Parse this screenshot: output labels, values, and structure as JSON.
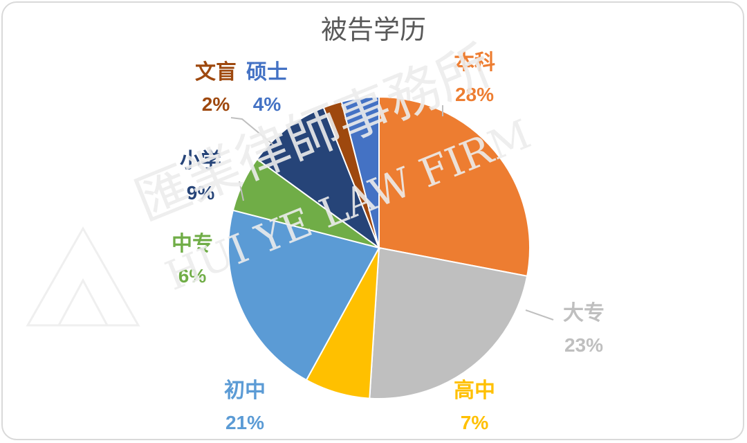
{
  "chart_data": {
    "type": "pie",
    "title": "被告学历",
    "slices": [
      {
        "label": "本科",
        "value": 28,
        "value_label": "28%",
        "color": "#ED7D31"
      },
      {
        "label": "大专",
        "value": 23,
        "value_label": "23%",
        "color": "#BFBFBF"
      },
      {
        "label": "高中",
        "value": 7,
        "value_label": "7%",
        "color": "#FFC000"
      },
      {
        "label": "初中",
        "value": 21,
        "value_label": "21%",
        "color": "#5B9BD5"
      },
      {
        "label": "中专",
        "value": 6,
        "value_label": "6%",
        "color": "#70AD47"
      },
      {
        "label": "小学",
        "value": 9,
        "value_label": "9%",
        "color": "#264478"
      },
      {
        "label": "文盲",
        "value": 2,
        "value_label": "2%",
        "color": "#9E480E"
      },
      {
        "label": "硕士",
        "value": 4,
        "value_label": "4%",
        "color": "#4472C4"
      }
    ]
  },
  "watermark": {
    "text_cn": "匯業律師事務所",
    "text_en": "HUI YE LAW FIRM"
  }
}
